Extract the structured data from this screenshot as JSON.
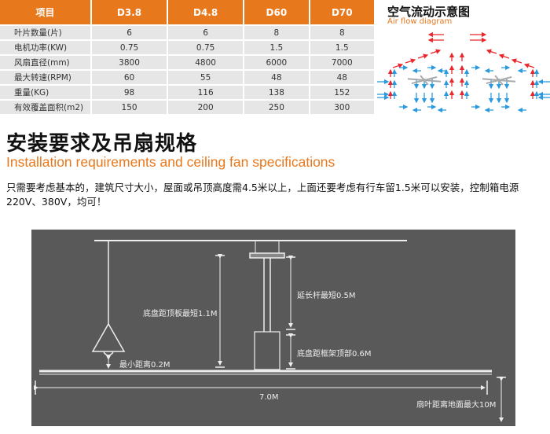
{
  "spec_table": {
    "headers": [
      "项目",
      "D3.8",
      "D4.8",
      "D60",
      "D70"
    ],
    "rows": [
      [
        "叶片数量(片)",
        "6",
        "6",
        "8",
        "8"
      ],
      [
        "电机功率(KW)",
        "0.75",
        "0.75",
        "1.5",
        "1.5"
      ],
      [
        "风扇直径(mm)",
        "3800",
        "4800",
        "6000",
        "7000"
      ],
      [
        "最大转速(RPM)",
        "60",
        "55",
        "48",
        "48"
      ],
      [
        "重量(KG)",
        "98",
        "116",
        "138",
        "152"
      ],
      [
        "有效覆盖面积(m2)",
        "150",
        "200",
        "250",
        "300"
      ]
    ]
  },
  "airflow": {
    "title": "空气流动示意图",
    "subtitle": "Air flow diagram"
  },
  "section": {
    "title": "安装要求及吊扇规格",
    "subtitle": "Installation requirements and ceiling fan specifications",
    "description": "只需要考虑基本的，建筑尺寸大小，屋面或吊顶高度需4.5米以上，上面还要考虑有行车留1.5米可以安装，控制箱电源220V、380V，均可！"
  },
  "diagram": {
    "label_min_distance": "最小距离0.2M",
    "label_chassis_ceiling": "底盘距顶板最短1.1M",
    "label_extension_rod": "延长杆最短0.5M",
    "label_chassis_frame": "底盘距框架顶部0.6M",
    "label_span": "7.0M",
    "label_floor": "扇叶距离地面最大10M"
  },
  "colors": {
    "accent": "#e8781c",
    "diagram_bg": "#595959",
    "arrow_red": "#e8282c",
    "arrow_blue": "#2a9ae0"
  }
}
